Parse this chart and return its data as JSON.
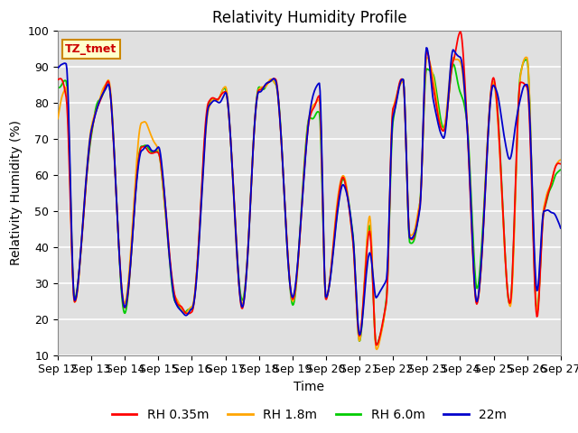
{
  "title": "Relativity Humidity Profile",
  "xlabel": "Time",
  "ylabel": "Relativity Humidity (%)",
  "ylim": [
    10,
    100
  ],
  "n_days": 15,
  "xtick_labels": [
    "Sep 12",
    "Sep 13",
    "Sep 14",
    "Sep 15",
    "Sep 16",
    "Sep 17",
    "Sep 18",
    "Sep 19",
    "Sep 20",
    "Sep 21",
    "Sep 22",
    "Sep 23",
    "Sep 24",
    "Sep 25",
    "Sep 26",
    "Sep 27"
  ],
  "ytick_vals": [
    10,
    20,
    30,
    40,
    50,
    60,
    70,
    80,
    90,
    100
  ],
  "colors": {
    "RH 0.35m": "#ff0000",
    "RH 1.8m": "#ffa500",
    "RH 6.0m": "#00cc00",
    "22m": "#0000cc"
  },
  "label_box_text": "TZ_tmet",
  "label_box_facecolor": "#ffffcc",
  "label_box_edgecolor": "#cc8800",
  "label_box_textcolor": "#cc0000",
  "background_color": "#e0e0e0",
  "grid_color": "#ffffff",
  "title_fontsize": 12,
  "axis_label_fontsize": 10,
  "tick_fontsize": 9,
  "legend_fontsize": 10,
  "linewidth": 1.3,
  "key_envelope": [
    [
      0.0,
      89,
      80,
      87,
      93
    ],
    [
      0.25,
      82,
      84,
      84,
      90
    ],
    [
      0.5,
      26,
      26,
      26,
      26
    ],
    [
      1.0,
      71,
      71,
      70,
      71
    ],
    [
      1.5,
      85,
      86,
      85,
      85
    ],
    [
      2.0,
      23,
      23,
      22,
      23
    ],
    [
      2.5,
      68,
      75,
      69,
      68
    ],
    [
      3.0,
      67,
      67,
      67,
      67
    ],
    [
      3.5,
      26,
      25,
      25,
      25
    ],
    [
      4.0,
      21,
      21,
      21,
      21
    ],
    [
      4.5,
      79,
      78,
      78,
      78
    ],
    [
      5.0,
      83,
      83,
      83,
      83
    ],
    [
      5.5,
      25,
      25,
      25,
      24
    ],
    [
      6.0,
      85,
      84,
      85,
      85
    ],
    [
      6.5,
      85,
      85,
      85,
      85
    ],
    [
      7.0,
      25,
      24,
      24,
      25
    ],
    [
      7.5,
      74,
      75,
      75,
      75
    ],
    [
      7.8,
      80,
      80,
      77,
      85
    ],
    [
      8.0,
      25,
      25,
      25,
      25
    ],
    [
      8.5,
      60,
      60,
      59,
      58
    ],
    [
      8.8,
      40,
      41,
      43,
      42
    ],
    [
      9.0,
      15,
      14,
      13,
      15
    ],
    [
      9.3,
      45,
      47,
      46,
      39
    ],
    [
      9.5,
      13,
      12,
      12,
      25
    ],
    [
      9.8,
      25,
      25,
      25,
      30
    ],
    [
      10.0,
      80,
      80,
      78,
      78
    ],
    [
      10.3,
      86,
      86,
      86,
      86
    ],
    [
      10.5,
      42,
      42,
      40,
      42
    ],
    [
      10.8,
      50,
      50,
      50,
      50
    ],
    [
      11.0,
      95,
      93,
      89,
      95
    ],
    [
      11.2,
      85,
      87,
      88,
      80
    ],
    [
      11.5,
      70,
      70,
      70,
      68
    ],
    [
      11.8,
      93,
      94,
      92,
      94
    ],
    [
      12.0,
      100,
      91,
      84,
      92
    ],
    [
      12.2,
      75,
      75,
      75,
      75
    ],
    [
      12.5,
      25,
      26,
      30,
      26
    ],
    [
      13.0,
      86,
      86,
      86,
      86
    ],
    [
      13.5,
      25,
      24,
      25,
      65
    ],
    [
      13.8,
      85,
      85,
      87,
      80
    ],
    [
      14.0,
      85,
      92,
      92,
      85
    ],
    [
      14.3,
      20,
      21,
      21,
      28
    ],
    [
      14.5,
      50,
      50,
      50,
      50
    ],
    [
      15.0,
      62,
      62,
      60,
      45
    ]
  ]
}
